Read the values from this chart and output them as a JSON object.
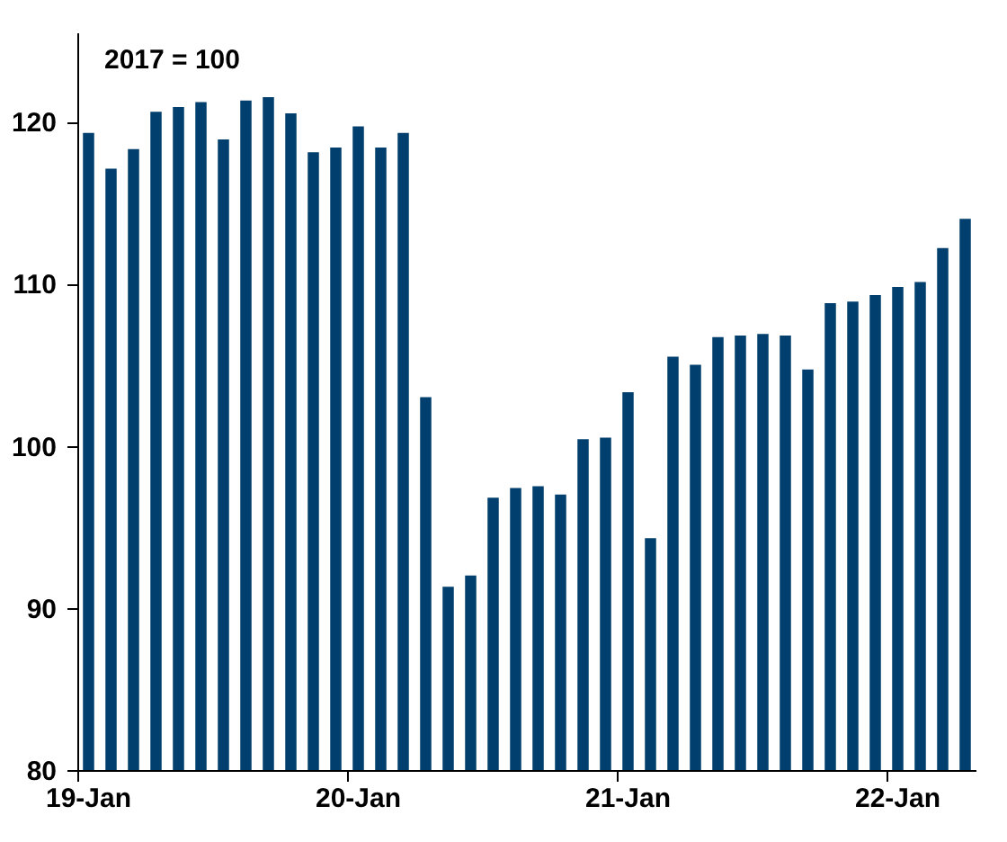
{
  "chart_data": {
    "type": "bar",
    "categories": [
      "19-Jan",
      null,
      null,
      null,
      null,
      null,
      null,
      null,
      null,
      null,
      null,
      null,
      "20-Jan",
      null,
      null,
      null,
      null,
      null,
      null,
      null,
      null,
      null,
      null,
      null,
      "21-Jan",
      null,
      null,
      null,
      null,
      null,
      null,
      null,
      null,
      null,
      null,
      null,
      "22-Jan",
      null,
      null,
      null
    ],
    "values": [
      119.3,
      117.1,
      118.3,
      120.6,
      120.9,
      121.2,
      118.9,
      121.3,
      121.5,
      120.5,
      118.1,
      118.4,
      119.7,
      118.4,
      119.3,
      103.0,
      91.3,
      92.0,
      96.8,
      97.4,
      97.5,
      97.0,
      100.4,
      100.5,
      103.3,
      94.3,
      105.5,
      105.0,
      106.7,
      106.8,
      106.9,
      106.8,
      104.7,
      108.8,
      108.9,
      109.3,
      109.8,
      110.1,
      112.2,
      114.0
    ],
    "color": "#003f6e",
    "ylim": [
      80,
      125.5
    ],
    "yticks": [
      80,
      90,
      100,
      110,
      120
    ],
    "annotations": [
      "2017 = 100"
    ],
    "grid": false
  }
}
